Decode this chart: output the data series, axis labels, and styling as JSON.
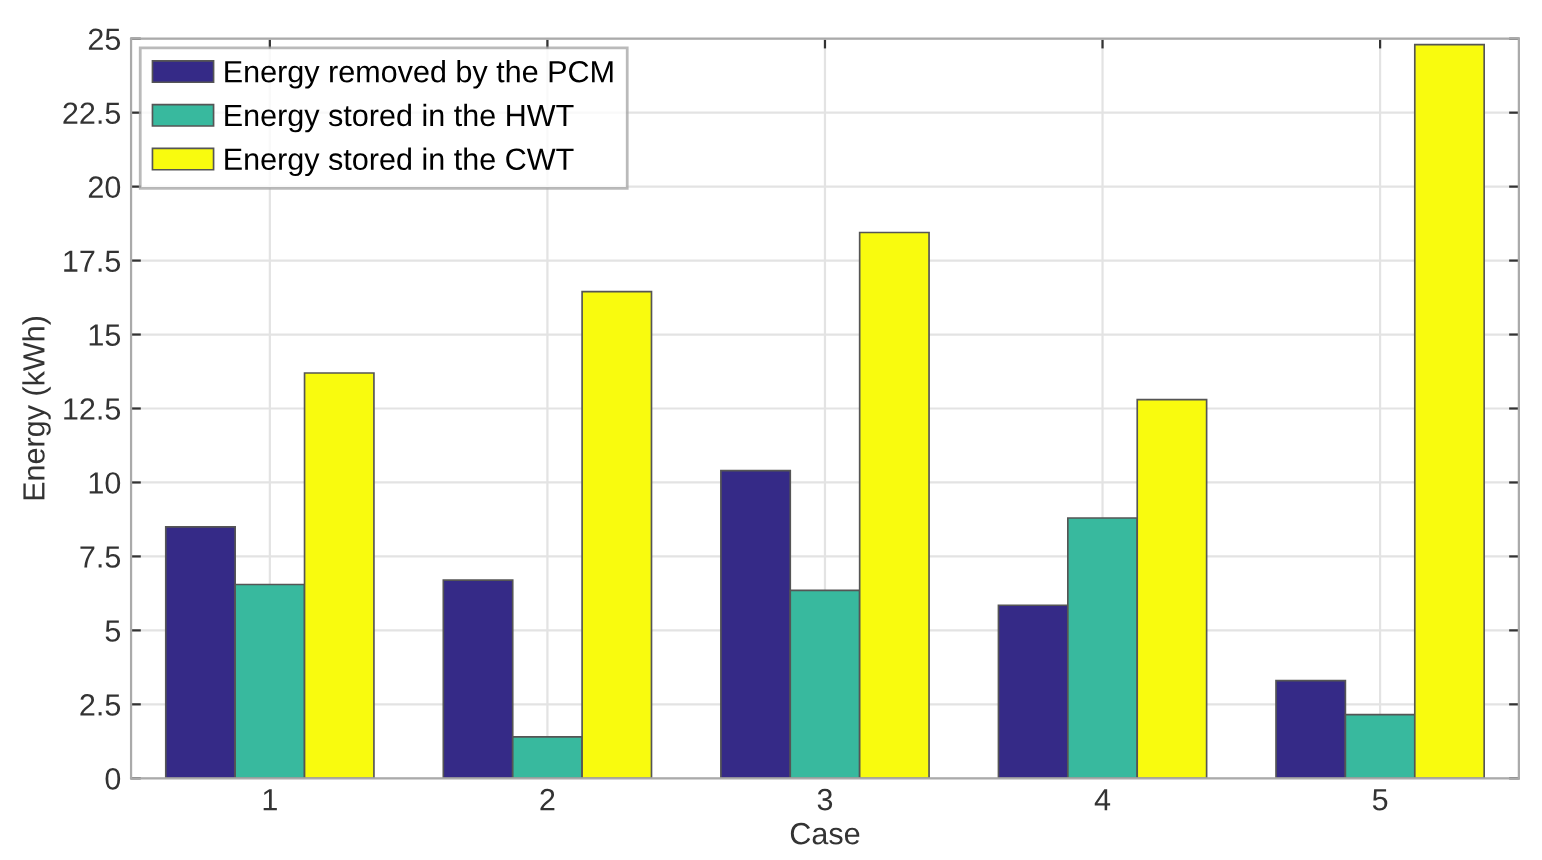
{
  "chart_data": {
    "type": "bar",
    "xlabel": "Case",
    "ylabel": "Energy (kWh)",
    "categories": [
      "1",
      "2",
      "3",
      "4",
      "5"
    ],
    "series": [
      {
        "name": "Energy removed by the PCM",
        "color": "#352a87",
        "values": [
          8.5,
          6.7,
          10.4,
          5.85,
          3.3
        ]
      },
      {
        "name": "Energy stored in the HWT",
        "color": "#38b99e",
        "values": [
          6.55,
          1.4,
          6.35,
          8.8,
          2.15
        ]
      },
      {
        "name": "Energy stored in the CWT",
        "color": "#f9fb0e",
        "values": [
          13.7,
          16.45,
          18.45,
          12.8,
          24.8
        ]
      }
    ],
    "ylim": [
      0,
      25
    ],
    "yticks": [
      0,
      2.5,
      5,
      7.5,
      10,
      12.5,
      15,
      17.5,
      20,
      22.5,
      25
    ],
    "grid": true,
    "legend": "top left"
  }
}
